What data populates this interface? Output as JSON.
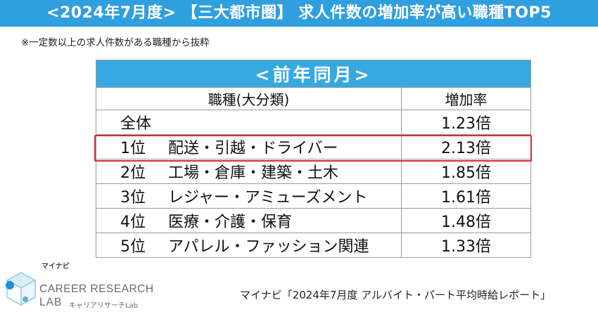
{
  "header": {
    "title": "<2024年7月度> 【三大都市圏】 求人件数の増加率が高い職種TOP5"
  },
  "note": "※一定数以上の求人件数がある職種から抜粋",
  "table": {
    "period_label": "<前年同月>",
    "columns": [
      "職種(大分類)",
      "増加率"
    ],
    "rows": [
      {
        "rank": "",
        "job": "全体",
        "rate": "1.23倍"
      },
      {
        "rank": "1位",
        "job": "配送・引越・ドライバー",
        "rate": "2.13倍"
      },
      {
        "rank": "2位",
        "job": "工場・倉庫・建築・土木",
        "rate": "1.85倍"
      },
      {
        "rank": "3位",
        "job": "レジャー・アミューズメント",
        "rate": "1.61倍"
      },
      {
        "rank": "4位",
        "job": "医療・介護・保育",
        "rate": "1.48倍"
      },
      {
        "rank": "5位",
        "job": "アパレル・ファッション関連",
        "rate": "1.33倍"
      }
    ],
    "highlight_color": "#e0262c",
    "header_color": "#36a9e1"
  },
  "logo": {
    "kana": "マイナビ",
    "line1": "CAREER RESEARCH",
    "line2": "LAB",
    "sub": "キャリアリサーチLab",
    "icon": "cube-logo-icon"
  },
  "source": "マイナビ「2024年7月度 アルバイト・パート平均時給レポート」"
}
